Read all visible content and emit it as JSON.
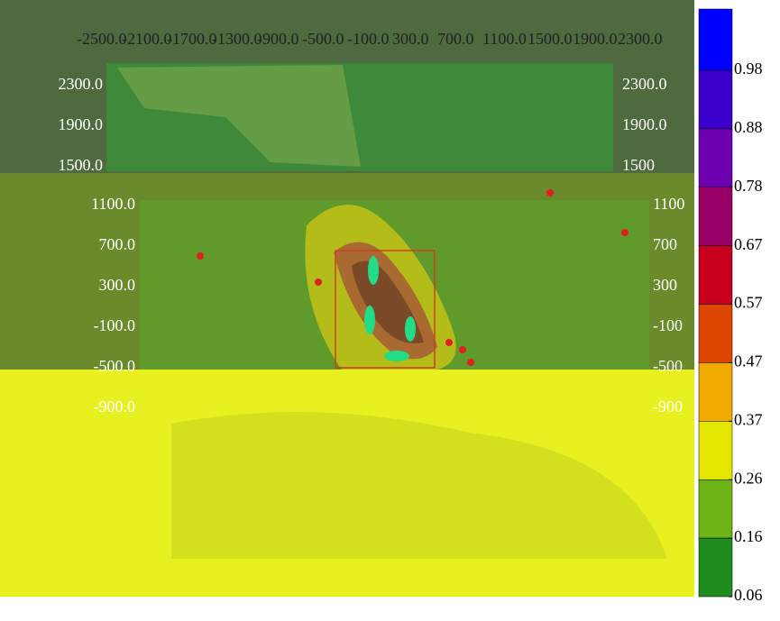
{
  "map": {
    "top_axis": [
      "-2500.0",
      "-2100.0",
      "-1700.0",
      "-1300.0",
      "-900.0",
      "-500.0",
      "-100.0",
      "300.0",
      "700.0",
      "1100.0",
      "1500.0",
      "1900.0",
      "2300.0"
    ],
    "upper_left_axis": [
      "2300.0",
      "1900.0",
      "1500.0"
    ],
    "upper_right_axis": [
      "2300.0",
      "1900.0",
      "1500"
    ],
    "lower_left_axis": [
      "1100.0",
      "700.0",
      "300.0",
      "-100.0",
      "-500.0",
      "-900.0"
    ],
    "lower_right_axis": [
      "1100",
      "700",
      "300",
      "-100",
      "-500",
      "-900"
    ]
  },
  "colorbar": {
    "labels": [
      "0.98",
      "0.88",
      "0.78",
      "0.67",
      "0.57",
      "0.47",
      "0.37",
      "0.26",
      "0.16",
      "0.06"
    ],
    "colors": [
      "#0000ff",
      "#3c00cc",
      "#6e00b0",
      "#960064",
      "#c8001e",
      "#dc4600",
      "#f0aa00",
      "#e4e600",
      "#6cb414",
      "#1e8c1e"
    ]
  }
}
